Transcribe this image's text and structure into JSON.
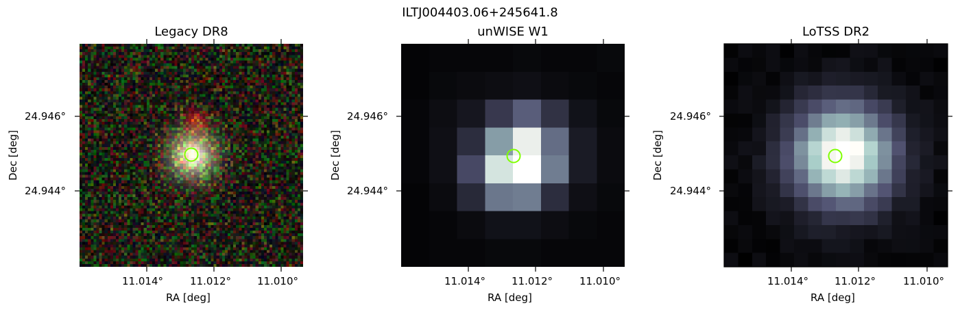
{
  "figure": {
    "suptitle": "ILTJ004403.06+245641.8"
  },
  "panels": [
    {
      "id": "legacy",
      "title": "Legacy DR8",
      "xlabel": "RA [deg]",
      "ylabel": "Dec [deg]",
      "xticks": [
        "11.014°",
        "11.012°",
        "11.010°"
      ],
      "yticks": [
        "24.946°",
        "24.944°"
      ],
      "colormap": "rgb-noise",
      "marker_color": "#7fff00"
    },
    {
      "id": "unwise",
      "title": "unWISE W1",
      "xlabel": "RA [deg]",
      "ylabel": "Dec [deg]",
      "xticks": [
        "11.014°",
        "11.012°",
        "11.010°"
      ],
      "yticks": [
        "24.946°",
        "24.944°"
      ],
      "colormap": "bone",
      "marker_color": "#7fff00"
    },
    {
      "id": "lotss",
      "title": "LoTSS DR2",
      "xlabel": "RA [deg]",
      "ylabel": "Dec [deg]",
      "xticks": [
        "11.014°",
        "11.012°",
        "11.010°"
      ],
      "yticks": [
        "24.946°",
        "24.944°"
      ],
      "colormap": "bone",
      "marker_color": "#7fff00"
    }
  ]
}
